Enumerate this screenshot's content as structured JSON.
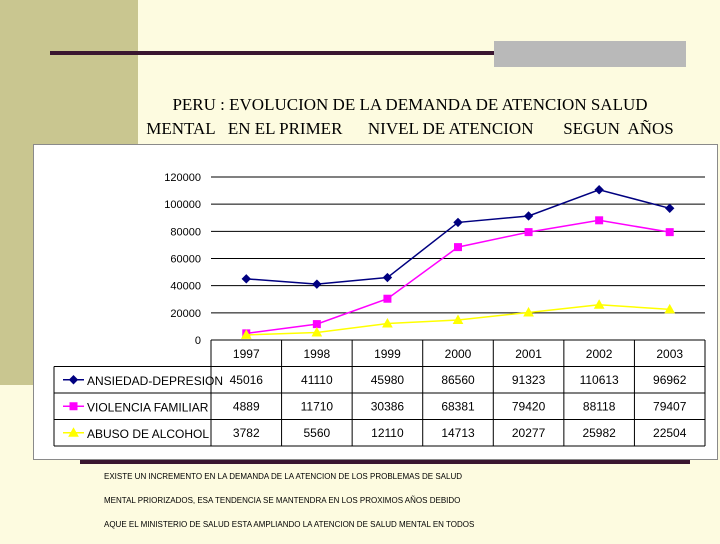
{
  "title": {
    "line1": "PERU : EVOLUCION DE LA DEMANDA DE ATENCION SALUD",
    "line2": "MENTAL   EN EL PRIMER      NIVEL DE ATENCION       SEGUN  AÑOS"
  },
  "note": {
    "line1": "EXISTE UN INCREMENTO EN LA DEMANDA DE LA ATENCION DE LOS PROBLEMAS DE SALUD",
    "line2": "MENTAL PRIORIZADOS, ESA TENDENCIA SE MANTENDRA EN LOS PROXIMOS AÑOS DEBIDO",
    "line3": "AQUE EL MINISTERIO DE SALUD ESTA AMPLIANDO LA ATENCION DE SALUD MENTAL EN TODOS"
  },
  "colors": {
    "band": "#c9c690",
    "rule": "#3a1630",
    "ansiedad": "#000080",
    "violencia": "#ff00ff",
    "alcohol": "#ffff00"
  },
  "chart_data": {
    "type": "line",
    "title": "PERU : EVOLUCION DE LA DEMANDA DE ATENCION SALUD MENTAL EN EL PRIMER NIVEL DE ATENCION SEGUN AÑOS",
    "categories": [
      "1997",
      "1998",
      "1999",
      "2000",
      "2001",
      "2002",
      "2003"
    ],
    "ylim": [
      0,
      120000
    ],
    "yticks": [
      "0",
      "20000",
      "40000",
      "60000",
      "80000",
      "100000",
      "120000"
    ],
    "series": [
      {
        "name": "ANSIEDAD-DEPRESION",
        "values": [
          45016,
          41110,
          45980,
          86560,
          91323,
          110613,
          96962
        ],
        "color": "#000080",
        "marker": "diamond"
      },
      {
        "name": "VIOLENCIA FAMILIAR",
        "values": [
          4889,
          11710,
          30386,
          68381,
          79420,
          88118,
          79407
        ],
        "color": "#ff00ff",
        "marker": "square"
      },
      {
        "name": "ABUSO DE ALCOHOL",
        "values": [
          3782,
          5560,
          12110,
          14713,
          20277,
          25982,
          22504
        ],
        "color": "#ffff00",
        "marker": "triangle"
      }
    ],
    "table_values": [
      [
        "45016",
        "41110",
        "45980",
        "86560",
        "91323",
        "110613",
        "96962"
      ],
      [
        "4889",
        "11710",
        "30386",
        "68381",
        "79420",
        "88118",
        "79407"
      ],
      [
        "3782",
        "5560",
        "12110",
        "14713",
        "20277",
        "25982",
        "22504"
      ]
    ],
    "gridlines": true
  }
}
